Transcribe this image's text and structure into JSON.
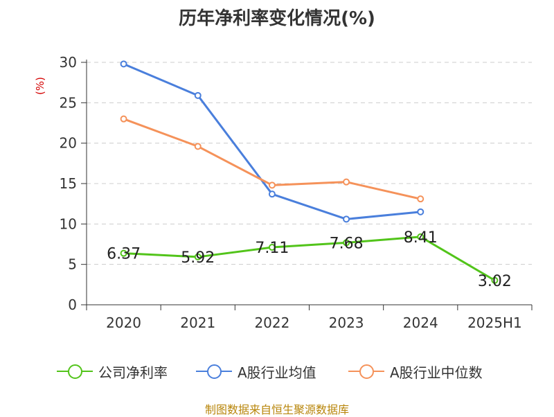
{
  "title": "历年净利率变化情况(%)",
  "source": "制图数据来自恒生聚源数据库",
  "chart_data": {
    "type": "line",
    "title": "历年净利率变化情况(%)",
    "ylabel": "(%)",
    "xlabel": "",
    "categories": [
      "2020",
      "2021",
      "2022",
      "2023",
      "2024",
      "2025H1"
    ],
    "ylim": [
      0,
      30
    ],
    "yticks": [
      0,
      5,
      10,
      15,
      20,
      25,
      30
    ],
    "grid": true,
    "legend_position": "bottom",
    "series": [
      {
        "name": "公司净利率",
        "color": "#52c41a",
        "values": [
          6.37,
          5.92,
          7.11,
          7.68,
          8.41,
          3.02
        ],
        "labels": [
          "6.37",
          "5.92",
          "7.11",
          "7.68",
          "8.41",
          "3.02"
        ]
      },
      {
        "name": "A股行业均值",
        "color": "#4a7fdc",
        "values": [
          29.8,
          25.9,
          13.7,
          10.6,
          11.5,
          null
        ]
      },
      {
        "name": "A股行业中位数",
        "color": "#f5925a",
        "values": [
          23.0,
          19.6,
          14.8,
          15.2,
          13.1,
          null
        ]
      }
    ]
  }
}
